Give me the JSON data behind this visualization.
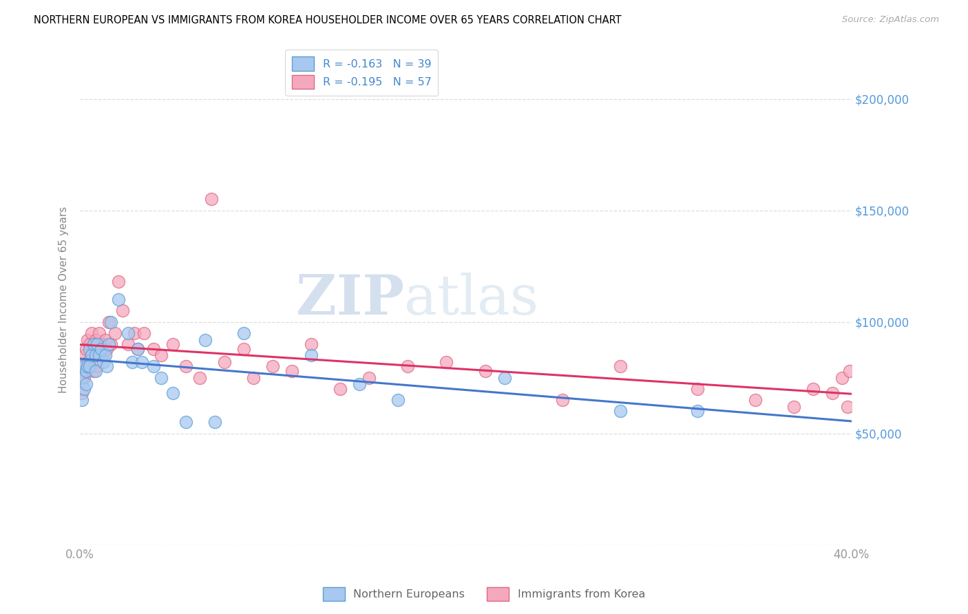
{
  "title": "NORTHERN EUROPEAN VS IMMIGRANTS FROM KOREA HOUSEHOLDER INCOME OVER 65 YEARS CORRELATION CHART",
  "source": "Source: ZipAtlas.com",
  "ylabel": "Householder Income Over 65 years",
  "xlim": [
    0.0,
    0.4
  ],
  "ylim": [
    0,
    220000
  ],
  "yticks": [
    0,
    50000,
    100000,
    150000,
    200000
  ],
  "ytick_labels": [
    "",
    "$50,000",
    "$100,000",
    "$150,000",
    "$200,000"
  ],
  "xticks": [
    0.0,
    0.1,
    0.2,
    0.3,
    0.4
  ],
  "xtick_labels": [
    "0.0%",
    "",
    "",
    "",
    "40.0%"
  ],
  "legend1_text": "R = -0.163   N = 39",
  "legend2_text": "R = -0.195   N = 57",
  "blue_color": "#a8c8f0",
  "pink_color": "#f4a8be",
  "blue_edge": "#5a9fd4",
  "pink_edge": "#e06880",
  "blue_line": "#4477cc",
  "pink_line": "#dd3366",
  "watermark_zip": "ZIP",
  "watermark_atlas": "atlas",
  "ne_x": [
    0.001,
    0.001,
    0.002,
    0.002,
    0.003,
    0.003,
    0.004,
    0.005,
    0.005,
    0.006,
    0.007,
    0.008,
    0.008,
    0.009,
    0.01,
    0.011,
    0.012,
    0.013,
    0.014,
    0.015,
    0.016,
    0.02,
    0.025,
    0.027,
    0.03,
    0.032,
    0.038,
    0.042,
    0.048,
    0.055,
    0.065,
    0.07,
    0.085,
    0.12,
    0.145,
    0.165,
    0.22,
    0.28,
    0.32
  ],
  "ne_y": [
    75000,
    65000,
    80000,
    70000,
    78000,
    72000,
    80000,
    88000,
    80000,
    85000,
    90000,
    85000,
    78000,
    90000,
    85000,
    88000,
    82000,
    85000,
    80000,
    90000,
    100000,
    110000,
    95000,
    82000,
    88000,
    82000,
    80000,
    75000,
    68000,
    55000,
    92000,
    55000,
    95000,
    85000,
    72000,
    65000,
    75000,
    60000,
    60000
  ],
  "ko_x": [
    0.001,
    0.001,
    0.002,
    0.002,
    0.003,
    0.003,
    0.004,
    0.004,
    0.005,
    0.005,
    0.006,
    0.007,
    0.007,
    0.008,
    0.009,
    0.009,
    0.01,
    0.011,
    0.012,
    0.013,
    0.014,
    0.015,
    0.016,
    0.018,
    0.02,
    0.022,
    0.025,
    0.028,
    0.03,
    0.033,
    0.038,
    0.042,
    0.048,
    0.055,
    0.062,
    0.068,
    0.075,
    0.085,
    0.09,
    0.1,
    0.11,
    0.12,
    0.135,
    0.15,
    0.17,
    0.19,
    0.21,
    0.25,
    0.28,
    0.32,
    0.35,
    0.37,
    0.38,
    0.39,
    0.395,
    0.398,
    0.399
  ],
  "ko_y": [
    78000,
    68000,
    85000,
    75000,
    88000,
    78000,
    92000,
    82000,
    90000,
    80000,
    95000,
    88000,
    78000,
    92000,
    88000,
    80000,
    95000,
    90000,
    85000,
    92000,
    88000,
    100000,
    90000,
    95000,
    118000,
    105000,
    90000,
    95000,
    88000,
    95000,
    88000,
    85000,
    90000,
    80000,
    75000,
    155000,
    82000,
    88000,
    75000,
    80000,
    78000,
    90000,
    70000,
    75000,
    80000,
    82000,
    78000,
    65000,
    80000,
    70000,
    65000,
    62000,
    70000,
    68000,
    75000,
    62000,
    78000
  ],
  "ne_s": 170,
  "ko_s": 170
}
